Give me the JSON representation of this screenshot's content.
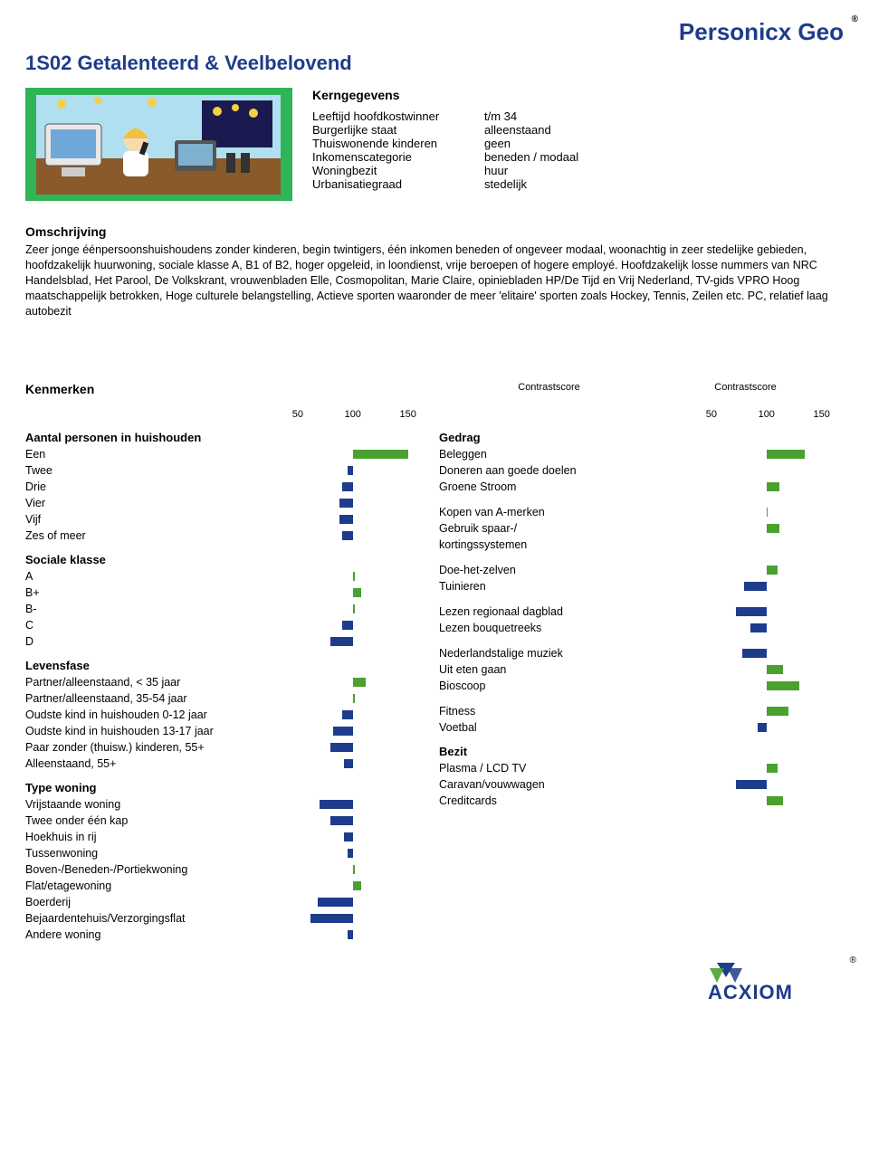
{
  "brand": "Personicx Geo",
  "segment_title": "1S02 Getalenteerd & Veelbelovend",
  "kern_heading": "Kerngegevens",
  "kern": [
    {
      "label": "Leeftijd hoofdkostwinner",
      "value": "t/m 34"
    },
    {
      "label": "Burgerlijke staat",
      "value": "alleenstaand"
    },
    {
      "label": "Thuiswonende kinderen",
      "value": "geen"
    },
    {
      "label": "Inkomenscategorie",
      "value": "beneden / modaal"
    },
    {
      "label": "Woningbezit",
      "value": "huur"
    },
    {
      "label": "Urbanisatiegraad",
      "value": "stedelijk"
    }
  ],
  "desc_heading": "Omschrijving",
  "description": "Zeer jonge éénpersoonshuishoudens zonder kinderen, begin twintigers, één inkomen beneden of ongeveer modaal, woonachtig in zeer stedelijke gebieden, hoofdzakelijk huurwoning, sociale klasse A, B1 of B2, hoger opgeleid, in loondienst, vrije beroepen of hogere employé. Hoofdzakelijk losse nummers van NRC Handelsblad, Het Parool, De Volkskrant, vrouwenbladen Elle, Cosmopolitan, Marie Claire, opiniebladen HP/De Tijd en Vrij Nederland, TV-gids VPRO Hoog maatschappelijk betrokken, Hoge culturele belangstelling, Actieve sporten waaronder  de meer 'elitaire' sporten zoals Hockey, Tennis, Zeilen etc. PC, relatief laag autobezit",
  "kenmerken_heading": "Kenmerken",
  "contrast_label": "Contrastscore",
  "ticks": [
    50,
    100,
    150
  ],
  "scale_max": 170,
  "colors": {
    "over": "#4aa12f",
    "under": "#1e3c8c"
  },
  "left_groups": [
    {
      "heading": "Aantal personen in huishouden",
      "rows": [
        {
          "label": "Een",
          "value": 150
        },
        {
          "label": "Twee",
          "value": 95
        },
        {
          "label": "Drie",
          "value": 90
        },
        {
          "label": "Vier",
          "value": 88
        },
        {
          "label": "Vijf",
          "value": 88
        },
        {
          "label": "Zes of meer",
          "value": 90
        }
      ]
    },
    {
      "heading": "Sociale klasse",
      "rows": [
        {
          "label": "A",
          "value": 102
        },
        {
          "label": "B+",
          "value": 108
        },
        {
          "label": "B-",
          "value": 102
        },
        {
          "label": "C",
          "value": 90
        },
        {
          "label": "D",
          "value": 80
        }
      ]
    },
    {
      "heading": "Levensfase",
      "rows": [
        {
          "label": "Partner/alleenstaand, < 35 jaar",
          "value": 112
        },
        {
          "label": "Partner/alleenstaand, 35-54 jaar",
          "value": 102
        },
        {
          "label": "Oudste kind in huishouden 0-12 jaar",
          "value": 90
        },
        {
          "label": "Oudste kind in huishouden 13-17 jaar",
          "value": 82
        },
        {
          "label": "Paar zonder (thuisw.) kinderen, 55+",
          "value": 80
        },
        {
          "label": "Alleenstaand, 55+",
          "value": 92
        }
      ]
    },
    {
      "heading": "Type woning",
      "rows": [
        {
          "label": "Vrijstaande woning",
          "value": 70
        },
        {
          "label": "Twee onder één kap",
          "value": 80
        },
        {
          "label": "Hoekhuis in rij",
          "value": 92
        },
        {
          "label": "Tussenwoning",
          "value": 95
        },
        {
          "label": "Boven-/Beneden-/Portiekwoning",
          "value": 102
        },
        {
          "label": "Flat/etagewoning",
          "value": 108
        },
        {
          "label": "Boerderij",
          "value": 68
        },
        {
          "label": "Bejaardentehuis/Verzorgingsflat",
          "value": 62
        },
        {
          "label": "Andere woning",
          "value": 95
        }
      ]
    }
  ],
  "right_groups": [
    {
      "heading": "Gedrag",
      "rows": [
        {
          "label": "Beleggen",
          "value": 135
        },
        {
          "label": "Doneren aan goede doelen",
          "value": 100
        },
        {
          "label": "Groene Stroom",
          "value": 112
        }
      ]
    },
    {
      "heading": "",
      "rows": [
        {
          "label": "Kopen van A-merken",
          "value": 101
        },
        {
          "label": "Gebruik spaar-/",
          "value": 112
        },
        {
          "label": "kortingssystemen",
          "value": null
        }
      ]
    },
    {
      "heading": "",
      "rows": [
        {
          "label": "Doe-het-zelven",
          "value": 110
        },
        {
          "label": "Tuinieren",
          "value": 80
        }
      ]
    },
    {
      "heading": "",
      "rows": [
        {
          "label": "Lezen regionaal dagblad",
          "value": 72
        },
        {
          "label": "Lezen bouquetreeks",
          "value": 85
        }
      ]
    },
    {
      "heading": "",
      "rows": [
        {
          "label": "Nederlandstalige muziek",
          "value": 78
        },
        {
          "label": "Uit eten gaan",
          "value": 115
        },
        {
          "label": "Bioscoop",
          "value": 130
        }
      ]
    },
    {
      "heading": "",
      "rows": [
        {
          "label": "Fitness",
          "value": 120
        },
        {
          "label": "Voetbal",
          "value": 92
        }
      ]
    },
    {
      "heading": "Bezit",
      "rows": [
        {
          "label": "Plasma / LCD TV",
          "value": 110
        },
        {
          "label": "Caravan/vouwwagen",
          "value": 72
        },
        {
          "label": "Creditcards",
          "value": 115
        }
      ]
    }
  ],
  "footer_logo": "ACXIOM",
  "illus": {
    "bg": "#2fb457",
    "wall": "#b0e0f0",
    "window": "#1a1a50",
    "desk": "#8a5a2a"
  }
}
